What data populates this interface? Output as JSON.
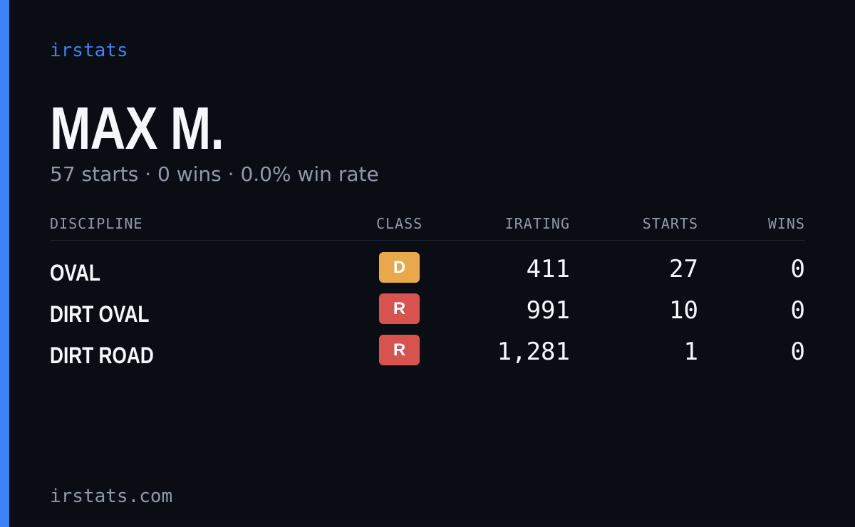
{
  "brand": "irstats",
  "profile": {
    "name": "MAX M.",
    "summary": "57 starts · 0 wins · 0.0% win rate"
  },
  "table": {
    "headers": [
      "DISCIPLINE",
      "CLASS",
      "IRATING",
      "STARTS",
      "WINS"
    ],
    "rows": [
      {
        "discipline": "OVAL",
        "class": "D",
        "class_color": "#e9a94b",
        "irating": "411",
        "starts": "27",
        "wins": "0"
      },
      {
        "discipline": "DIRT OVAL",
        "class": "R",
        "class_color": "#d8524f",
        "irating": "991",
        "starts": "10",
        "wins": "0"
      },
      {
        "discipline": "DIRT ROAD",
        "class": "R",
        "class_color": "#d8524f",
        "irating": "1,281",
        "starts": "1",
        "wins": "0"
      }
    ]
  },
  "footer": "irstats.com"
}
